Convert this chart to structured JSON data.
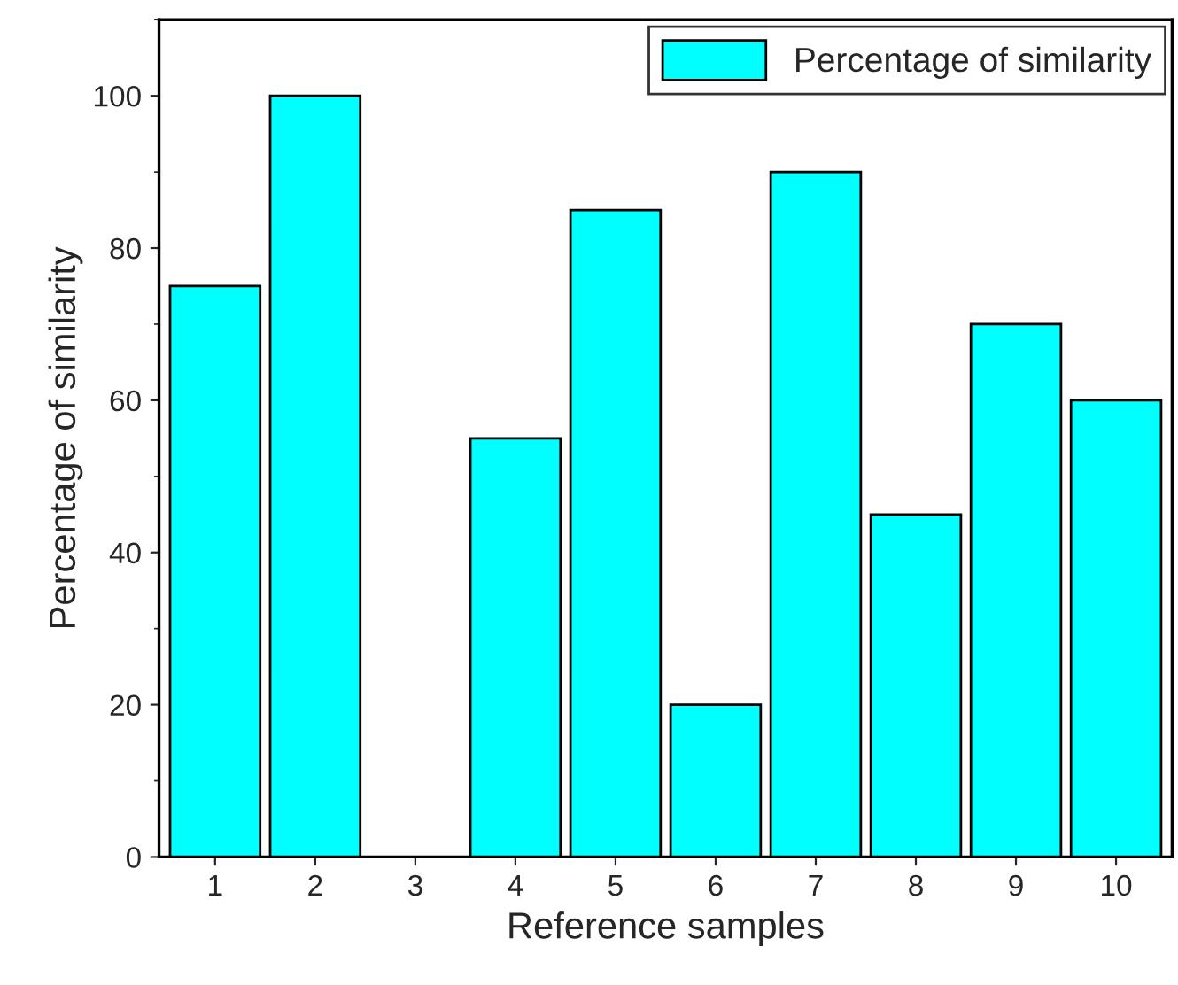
{
  "chart_data": {
    "type": "bar",
    "xlabel": "Reference samples",
    "ylabel": "Percentage of similarity",
    "categories": [
      "1",
      "2",
      "3",
      "4",
      "5",
      "6",
      "7",
      "8",
      "9",
      "10"
    ],
    "series": [
      {
        "name": "Percentage of similarity",
        "color": "#00ffff",
        "values": [
          75,
          100,
          0,
          55,
          85,
          20,
          90,
          45,
          70,
          60
        ]
      }
    ],
    "ylim": [
      0,
      110
    ],
    "yticks": [
      0,
      20,
      40,
      60,
      80,
      100
    ],
    "grid": false,
    "legend": "top right"
  }
}
